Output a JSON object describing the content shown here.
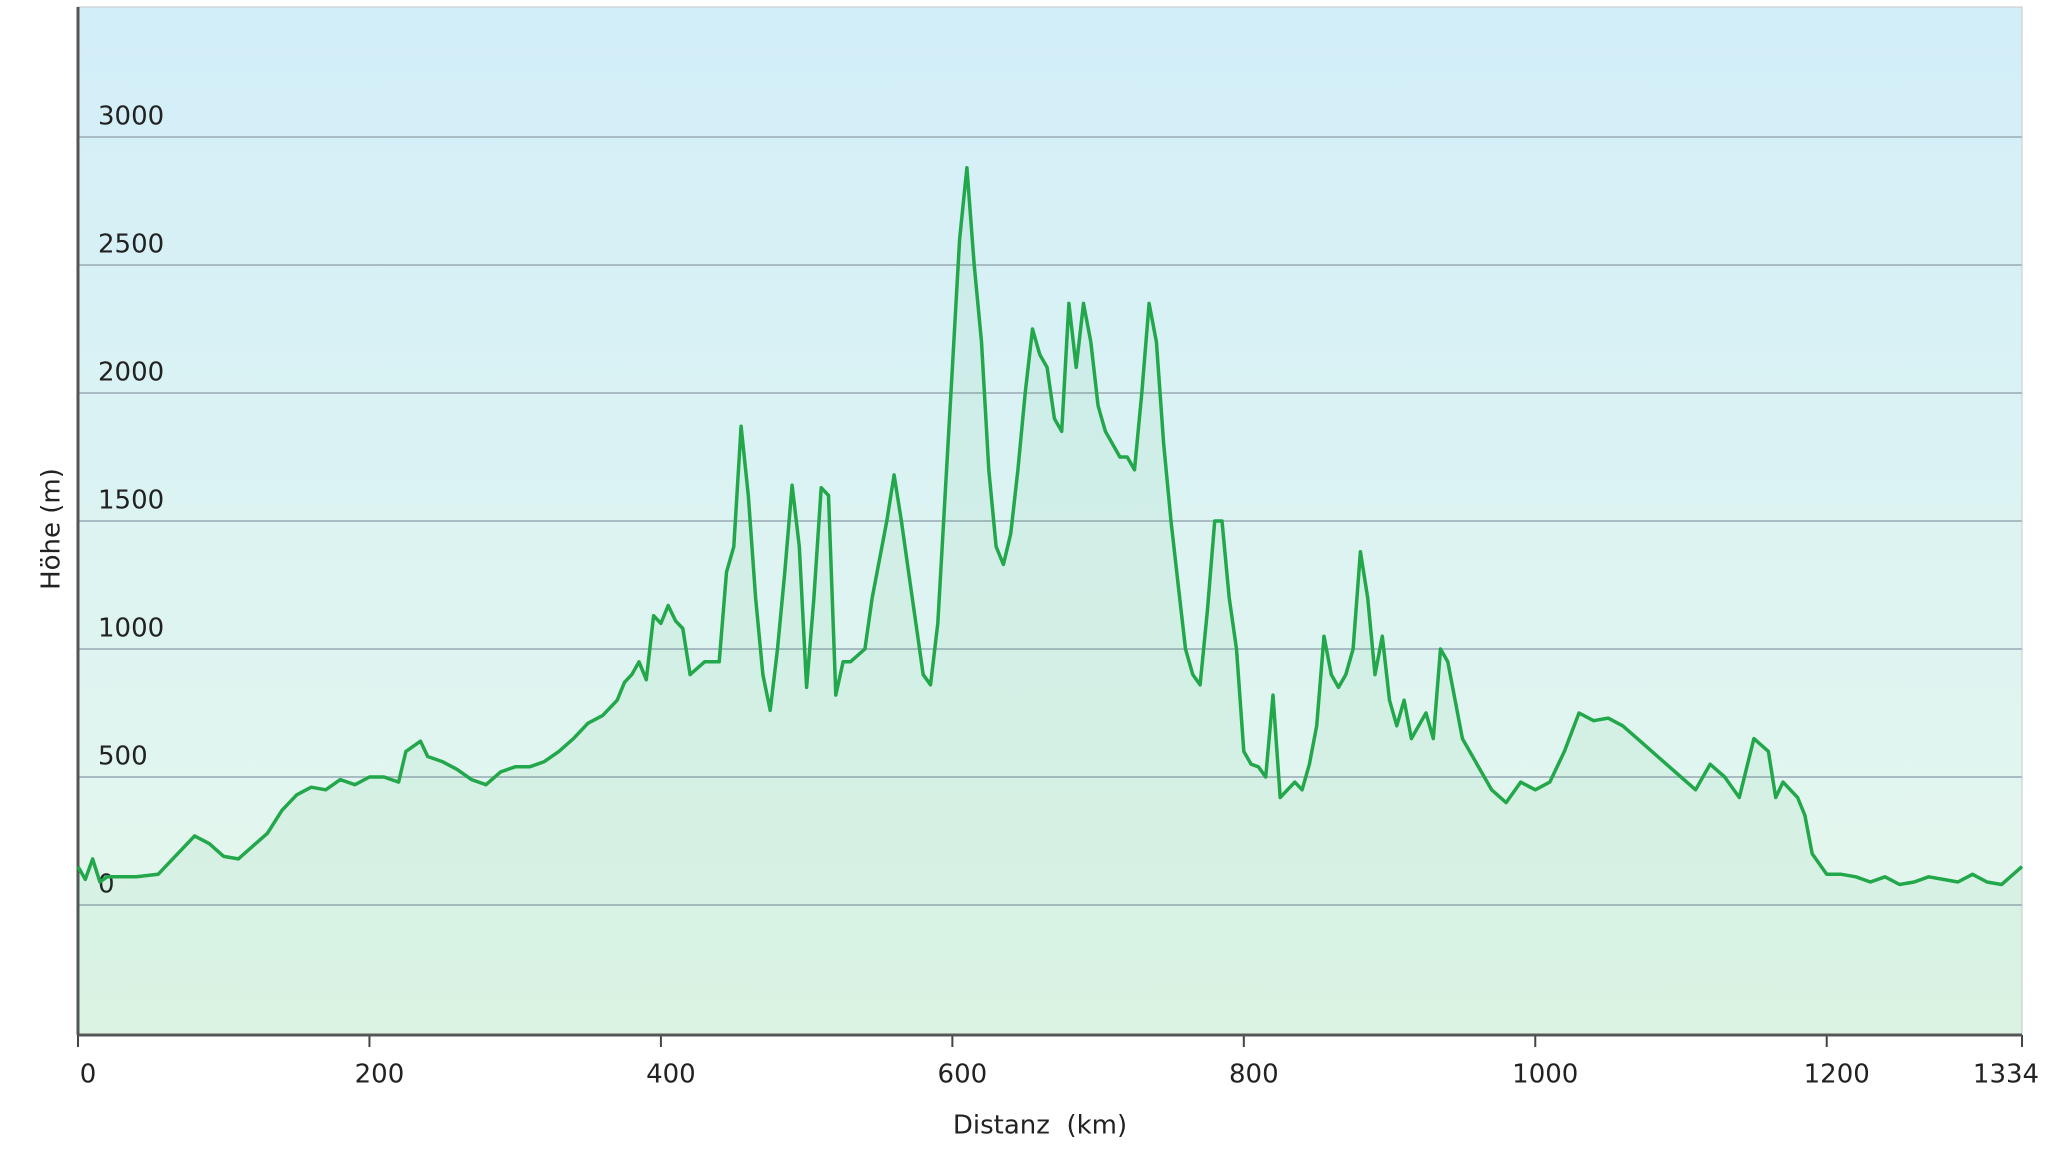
{
  "chart_data": {
    "type": "line",
    "xlabel": "Distanz  (km)",
    "ylabel": "Höhe (m)",
    "color": "#22a84a",
    "grid": true,
    "xlim": [
      0,
      1334
    ],
    "xticks": [
      0,
      200,
      400,
      600,
      800,
      1000,
      1200,
      1334
    ],
    "ylim": [
      -500,
      3500
    ],
    "yticks": [
      0,
      500,
      1000,
      1500,
      2000,
      2500,
      3000
    ],
    "x": [
      0,
      5,
      10,
      15,
      20,
      40,
      55,
      65,
      80,
      90,
      100,
      110,
      120,
      130,
      140,
      150,
      160,
      170,
      180,
      190,
      200,
      210,
      220,
      225,
      235,
      240,
      250,
      260,
      270,
      280,
      290,
      300,
      310,
      320,
      330,
      340,
      350,
      360,
      370,
      375,
      380,
      385,
      390,
      395,
      400,
      405,
      410,
      415,
      420,
      430,
      440,
      445,
      450,
      455,
      460,
      465,
      470,
      475,
      480,
      485,
      490,
      495,
      500,
      505,
      510,
      515,
      520,
      525,
      530,
      540,
      545,
      550,
      555,
      560,
      565,
      570,
      575,
      580,
      585,
      590,
      595,
      600,
      605,
      610,
      615,
      620,
      625,
      630,
      635,
      640,
      645,
      650,
      655,
      660,
      665,
      670,
      675,
      680,
      685,
      690,
      695,
      700,
      705,
      710,
      715,
      720,
      725,
      730,
      735,
      740,
      745,
      750,
      755,
      760,
      765,
      770,
      775,
      780,
      785,
      790,
      795,
      800,
      805,
      810,
      815,
      820,
      825,
      830,
      835,
      840,
      845,
      850,
      855,
      860,
      865,
      870,
      875,
      880,
      885,
      890,
      895,
      900,
      905,
      910,
      915,
      920,
      925,
      930,
      935,
      940,
      945,
      950,
      955,
      960,
      970,
      980,
      990,
      1000,
      1010,
      1020,
      1030,
      1040,
      1050,
      1060,
      1070,
      1080,
      1090,
      1100,
      1110,
      1120,
      1130,
      1140,
      1150,
      1160,
      1165,
      1170,
      1180,
      1185,
      1190,
      1200,
      1210,
      1220,
      1230,
      1240,
      1250,
      1260,
      1270,
      1280,
      1290,
      1300,
      1310,
      1320,
      1334
    ],
    "values": [
      150,
      100,
      180,
      90,
      110,
      110,
      120,
      180,
      270,
      240,
      190,
      180,
      230,
      280,
      370,
      430,
      460,
      450,
      490,
      470,
      500,
      500,
      480,
      600,
      640,
      580,
      560,
      530,
      490,
      470,
      520,
      540,
      540,
      560,
      600,
      650,
      710,
      740,
      800,
      870,
      900,
      950,
      880,
      1130,
      1100,
      1170,
      1110,
      1080,
      900,
      950,
      950,
      1300,
      1400,
      1870,
      1600,
      1200,
      900,
      760,
      1000,
      1300,
      1640,
      1400,
      850,
      1200,
      1630,
      1600,
      820,
      950,
      950,
      1000,
      1200,
      1350,
      1500,
      1680,
      1500,
      1300,
      1100,
      900,
      860,
      1100,
      1600,
      2100,
      2600,
      2880,
      2500,
      2200,
      1700,
      1400,
      1330,
      1450,
      1700,
      2000,
      2250,
      2150,
      2100,
      1900,
      1850,
      2350,
      2100,
      2350,
      2200,
      1950,
      1850,
      1800,
      1750,
      1750,
      1700,
      2000,
      2350,
      2200,
      1800,
      1500,
      1250,
      1000,
      900,
      860,
      1150,
      1500,
      1500,
      1200,
      1000,
      600,
      550,
      540,
      500,
      820,
      420,
      450,
      480,
      450,
      550,
      700,
      1050,
      900,
      850,
      900,
      1000,
      1380,
      1200,
      900,
      1050,
      800,
      700,
      800,
      650,
      700,
      750,
      650,
      1000,
      950,
      800,
      650,
      600,
      550,
      450,
      400,
      480,
      450,
      480,
      600,
      750,
      720,
      730,
      700,
      650,
      600,
      550,
      500,
      450,
      550,
      500,
      420,
      650,
      600,
      420,
      480,
      420,
      350,
      200,
      120,
      120,
      110,
      90,
      110,
      80,
      90,
      110,
      100,
      90,
      120,
      90,
      80,
      150
    ]
  }
}
